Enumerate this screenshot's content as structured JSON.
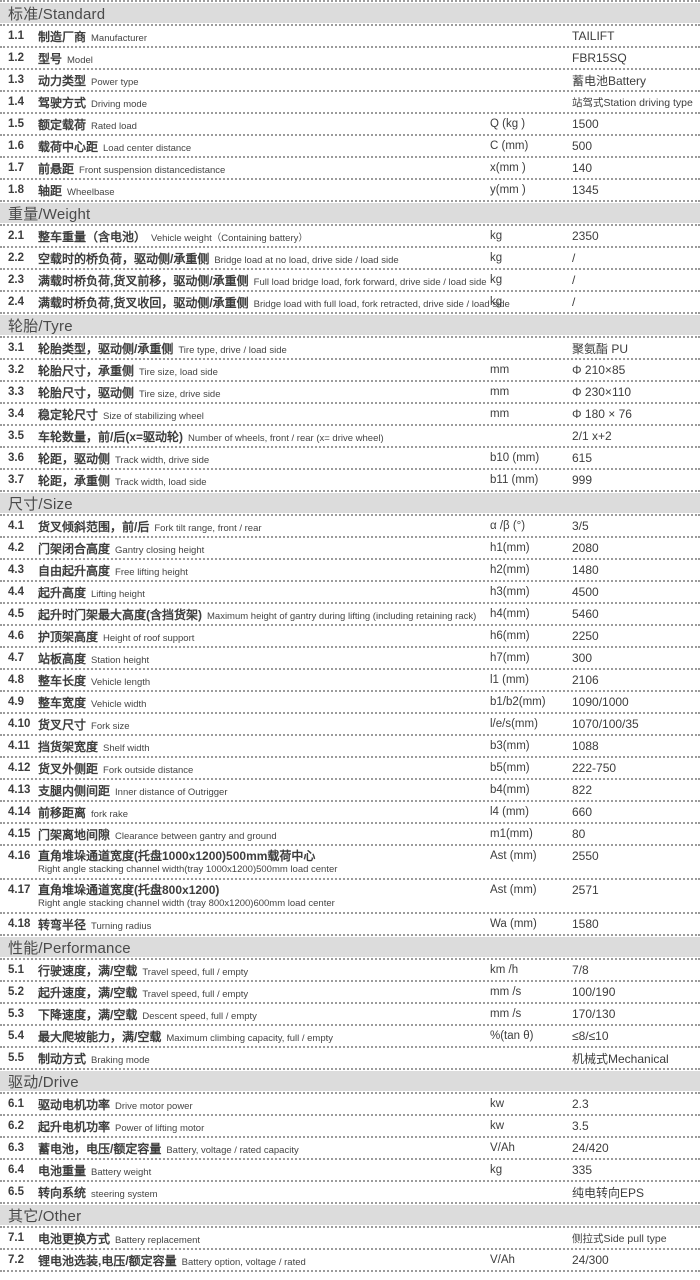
{
  "colors": {
    "header_bg": "#dcdcdc",
    "header_text": "#4a4a4a",
    "row_text": "#3d3d3d",
    "dot_color": "#9b9b9b",
    "page_bg": "#ffffff"
  },
  "table": {
    "sections": [
      {
        "title": "标准/Standard",
        "rows": [
          {
            "num": "1.1",
            "cn": "制造厂商",
            "en": "Manufacturer",
            "unit": "",
            "value": "TAILIFT"
          },
          {
            "num": "1.2",
            "cn": "型号",
            "en": "Model",
            "unit": "",
            "value": "FBR15SQ"
          },
          {
            "num": "1.3",
            "cn": "动力类型",
            "en": "Power type",
            "unit": "",
            "value": "蓄电池Battery"
          },
          {
            "num": "1.4",
            "cn": "驾驶方式",
            "en": "Driving mode",
            "unit": "",
            "value": "站驾式Station driving type"
          },
          {
            "num": "1.5",
            "cn": "额定载荷",
            "en": "Rated load",
            "unit": "Q (kg )",
            "value": "1500"
          },
          {
            "num": "1.6",
            "cn": "载荷中心距",
            "en": "Load center distance",
            "unit": "C (mm)",
            "value": "500"
          },
          {
            "num": "1.7",
            "cn": "前悬距",
            "en": "Front suspension distancedistance",
            "unit": "x(mm )",
            "value": "140"
          },
          {
            "num": "1.8",
            "cn": "轴距",
            "en": "Wheelbase",
            "unit": "y(mm )",
            "value": "1345"
          }
        ]
      },
      {
        "title": "重量/Weight",
        "rows": [
          {
            "num": "2.1",
            "cn": "整车重量（含电池）",
            "en": "Vehicle weight（Containing battery）",
            "unit": "kg",
            "value": "2350"
          },
          {
            "num": "2.2",
            "cn": "空载时的桥负荷，驱动侧/承重侧",
            "en": "Bridge load at no load, drive side / load side",
            "unit": "kg",
            "value": "/"
          },
          {
            "num": "2.3",
            "cn": "满载时桥负荷,货叉前移，驱动侧/承重侧",
            "en": "Full load bridge load, fork forward, drive side / load side",
            "unit": "kg",
            "value": "/"
          },
          {
            "num": "2.4",
            "cn": "满载时桥负荷,货叉收回，驱动侧/承重侧",
            "en": "Bridge load with full load, fork retracted, drive side / load side",
            "unit": "kg",
            "value": "/"
          }
        ]
      },
      {
        "title": "轮胎/Tyre",
        "rows": [
          {
            "num": "3.1",
            "cn": "轮胎类型，驱动侧/承重侧",
            "en": "Tire type, drive / load side",
            "unit": "",
            "value": "聚氨酯  PU"
          },
          {
            "num": "3.2",
            "cn": "轮胎尺寸，承重侧",
            "en": "Tire size, load side",
            "unit": "mm",
            "value": "Φ 210×85"
          },
          {
            "num": "3.3",
            "cn": "轮胎尺寸，驱动侧",
            "en": "Tire size, drive side",
            "unit": "mm",
            "value": "Φ 230×110"
          },
          {
            "num": "3.4",
            "cn": "稳定轮尺寸",
            "en": "Size of stabilizing wheel",
            "unit": "mm",
            "value": "Φ 180 × 76"
          },
          {
            "num": "3.5",
            "cn": "车轮数量，前/后(x=驱动轮)",
            "en": "Number of wheels, front / rear (x= drive wheel)",
            "unit": "",
            "value": "2/1 x+2"
          },
          {
            "num": "3.6",
            "cn": "轮距，驱动侧",
            "en": "Track width, drive side",
            "unit": "b10 (mm)",
            "value": "615"
          },
          {
            "num": "3.7",
            "cn": "轮距，承重侧",
            "en": "Track width, load side",
            "unit": "b11 (mm)",
            "value": "999"
          }
        ]
      },
      {
        "title": "尺寸/Size",
        "rows": [
          {
            "num": "4.1",
            "cn": "货叉倾斜范围，前/后",
            "en": "Fork tilt range, front / rear",
            "unit": "α /β (°)",
            "value": "3/5"
          },
          {
            "num": "4.2",
            "cn": "门架闭合高度",
            "en": "Gantry closing height",
            "unit": "h1(mm)",
            "value": "2080"
          },
          {
            "num": "4.3",
            "cn": "自由起升高度",
            "en": "Free lifting height",
            "unit": "h2(mm)",
            "value": "1480"
          },
          {
            "num": "4.4",
            "cn": "起升高度",
            "en": "Lifting height",
            "unit": "h3(mm)",
            "value": "4500"
          },
          {
            "num": "4.5",
            "cn": "起升时门架最大高度(含挡货架)",
            "en": "Maximum height of gantry during lifting (including retaining rack)",
            "unit": "h4(mm)",
            "value": "5460"
          },
          {
            "num": "4.6",
            "cn": "护顶架高度",
            "en": "Height of roof support",
            "unit": "h6(mm)",
            "value": "2250"
          },
          {
            "num": "4.7",
            "cn": "站板高度",
            "en": "Station height",
            "unit": "h7(mm)",
            "value": "300"
          },
          {
            "num": "4.8",
            "cn": "整车长度",
            "en": "Vehicle length",
            "unit": "l1 (mm)",
            "value": "2106"
          },
          {
            "num": "4.9",
            "cn": "整车宽度",
            "en": "Vehicle width",
            "unit": "b1/b2(mm)",
            "value": "1090/1000"
          },
          {
            "num": "4.10",
            "cn": "货叉尺寸",
            "en": "Fork size",
            "unit": "l/e/s(mm)",
            "value": "1070/100/35"
          },
          {
            "num": "4.11",
            "cn": "挡货架宽度",
            "en": "Shelf width",
            "unit": "b3(mm)",
            "value": "1088"
          },
          {
            "num": "4.12",
            "cn": "货叉外侧距",
            "en": "Fork outside distance",
            "unit": "b5(mm)",
            "value": "222-750"
          },
          {
            "num": "4.13",
            "cn": "支腿内侧间距",
            "en": "Inner distance of Outrigger",
            "unit": "b4(mm)",
            "value": "822"
          },
          {
            "num": "4.14",
            "cn": "前移距离",
            "en": "fork rake",
            "unit": "l4 (mm)",
            "value": "660"
          },
          {
            "num": "4.15",
            "cn": "门架离地间隙",
            "en": "Clearance between gantry and ground",
            "unit": "m1(mm)",
            "value": "80"
          },
          {
            "num": "4.16",
            "cn": "直角堆垛通道宽度(托盘1000x1200)500mm载荷中心",
            "en": "Right angle stacking channel width(tray 1000x1200)500mm load center",
            "unit": "Ast (mm)",
            "value": "2550",
            "two": true
          },
          {
            "num": "4.17",
            "cn": "直角堆垛通道宽度(托盘800x1200)",
            "en": "Right angle stacking channel width (tray 800x1200)600mm load center",
            "unit": "Ast (mm)",
            "value": "2571",
            "two": true
          },
          {
            "num": "4.18",
            "cn": "转弯半径",
            "en": "Turning radius",
            "unit": "Wa (mm)",
            "value": "1580"
          }
        ]
      },
      {
        "title": "性能/Performance",
        "rows": [
          {
            "num": "5.1",
            "cn": "行驶速度，满/空载",
            "en": "Travel speed, full / empty",
            "unit": "km /h",
            "value": "7/8"
          },
          {
            "num": "5.2",
            "cn": "起升速度，满/空载",
            "en": "Travel speed, full / empty",
            "unit": "mm /s",
            "value": "100/190"
          },
          {
            "num": "5.3",
            "cn": "下降速度，满/空载",
            "en": "Descent speed, full / empty",
            "unit": "mm /s",
            "value": "170/130"
          },
          {
            "num": "5.4",
            "cn": "最大爬坡能力，满/空载",
            "en": "Maximum climbing capacity, full / empty",
            "unit": "%(tan θ)",
            "value": "≤8/≤10"
          },
          {
            "num": "5.5",
            "cn": "制动方式",
            "en": "Braking mode",
            "unit": "",
            "value": "机械式Mechanical"
          }
        ]
      },
      {
        "title": "驱动/Drive",
        "rows": [
          {
            "num": "6.1",
            "cn": "驱动电机功率",
            "en": "Drive motor power",
            "unit": "kw",
            "value": "2.3"
          },
          {
            "num": "6.2",
            "cn": "起升电机功率",
            "en": "Power of lifting motor",
            "unit": "kw",
            "value": "3.5"
          },
          {
            "num": "6.3",
            "cn": "蓄电池，电压/额定容量",
            "en": "Battery, voltage / rated capacity",
            "unit": "V/Ah",
            "value": "24/420"
          },
          {
            "num": "6.4",
            "cn": "电池重量",
            "en": "Battery weight",
            "unit": "kg",
            "value": "335"
          },
          {
            "num": "6.5",
            "cn": "转向系统",
            "en": "steering system",
            "unit": "",
            "value": "纯电转向EPS"
          }
        ]
      },
      {
        "title": "其它/Other",
        "rows": [
          {
            "num": "7.1",
            "cn": "电池更换方式",
            "en": "Battery replacement",
            "unit": "",
            "value": "侧拉式Side pull type"
          },
          {
            "num": "7.2",
            "cn": "锂电池选装,电压/额定容量",
            "en": "Battery option, voltage / rated",
            "unit": "V/Ah",
            "value": "24/300"
          }
        ]
      }
    ]
  }
}
